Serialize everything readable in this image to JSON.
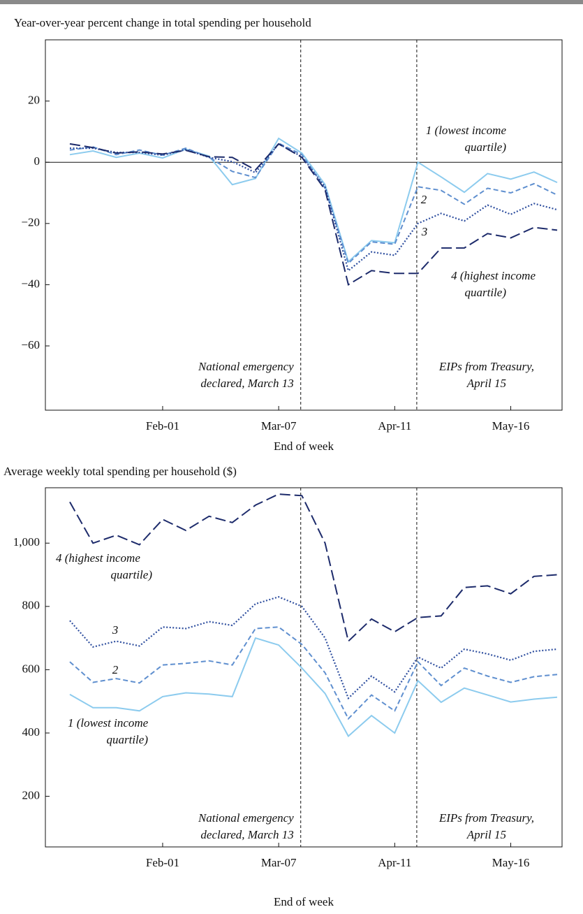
{
  "chart_data": [
    {
      "type": "line",
      "title": "Year-over-year percent change in total spending per household",
      "xlabel": "End of week",
      "categories": [
        null,
        null,
        null,
        null,
        "Feb-01",
        null,
        null,
        null,
        null,
        "Mar-07",
        null,
        null,
        null,
        null,
        "Apr-11",
        null,
        null,
        null,
        null,
        "May-16",
        null,
        null
      ],
      "ylim": [
        -81,
        40
      ],
      "yticks": [
        {
          "value": -60,
          "label": "−60"
        },
        {
          "value": -40,
          "label": "−40"
        },
        {
          "value": -20,
          "label": "−20"
        },
        0,
        20
      ],
      "zero_line": true,
      "series": [
        {
          "label": [
            "1 (lowest income",
            "quartile)"
          ],
          "color": "#8ccbee",
          "dash": "solid",
          "values": [
            2.5,
            3.7,
            1.6,
            3,
            1.4,
            4.3,
            2,
            -7.3,
            -5.3,
            7.8,
            3,
            -7.3,
            -32.5,
            -25.6,
            -26.3,
            0,
            -4.8,
            -9.8,
            -3.7,
            -5.5,
            -3.2,
            -6.6
          ]
        },
        {
          "label": [
            "2"
          ],
          "color": "#5f8fcf",
          "dash": "dashed",
          "values": [
            4,
            5,
            2.5,
            4,
            2.3,
            4.6,
            1.6,
            -3,
            -5,
            6.2,
            2.5,
            -8.5,
            -33,
            -26,
            -26.8,
            -8,
            -9.2,
            -13.7,
            -8.5,
            -10,
            -7,
            -10.7
          ]
        },
        {
          "label": [
            "3"
          ],
          "color": "#2f4f9f",
          "dash": "dotted",
          "values": [
            4.6,
            4.6,
            3.2,
            3.2,
            2.3,
            4.1,
            1.6,
            0.2,
            -3.4,
            6,
            1.8,
            -8,
            -35.4,
            -29.3,
            -30.4,
            -20,
            -16.7,
            -19.2,
            -14,
            -17,
            -13.5,
            -15.5
          ]
        },
        {
          "label": [
            "4 (highest income",
            "quartile)"
          ],
          "color": "#1d2b6b",
          "dash": "longdash",
          "values": [
            6,
            4.8,
            3,
            3.4,
            2.7,
            3.9,
            1.8,
            1.6,
            -2.5,
            6,
            1.6,
            -9,
            -40,
            -35.4,
            -36.3,
            -36.3,
            -28,
            -28,
            -23.3,
            -24.7,
            -21.3,
            -22.2
          ]
        }
      ],
      "events": [
        {
          "lines": [
            "National emergency",
            "declared, March 13"
          ]
        },
        {
          "lines": [
            "EIPs from Treasury,",
            "April 15"
          ]
        }
      ]
    },
    {
      "type": "line",
      "title": "Average weekly total spending per household ($)",
      "xlabel": "End of week",
      "categories": [
        null,
        null,
        null,
        null,
        "Feb-01",
        null,
        null,
        null,
        null,
        "Mar-07",
        null,
        null,
        null,
        null,
        "Apr-11",
        null,
        null,
        null,
        null,
        "May-16",
        null,
        null
      ],
      "ylim": [
        40,
        1175
      ],
      "yticks": [
        200,
        400,
        600,
        800,
        {
          "value": 1000,
          "label": "1,000"
        }
      ],
      "zero_line": false,
      "series": [
        {
          "label": [
            "1 (lowest income",
            "quartile)"
          ],
          "color": "#8ccbee",
          "dash": "solid",
          "values": [
            522,
            480,
            480,
            470,
            515,
            527,
            523,
            515,
            700,
            678,
            605,
            525,
            390,
            455,
            400,
            565,
            497,
            542,
            520,
            498,
            507,
            513
          ]
        },
        {
          "label": [
            "2"
          ],
          "color": "#5f8fcf",
          "dash": "dashed",
          "values": [
            625,
            560,
            572,
            558,
            615,
            620,
            628,
            615,
            730,
            735,
            680,
            590,
            445,
            520,
            470,
            625,
            550,
            605,
            580,
            560,
            578,
            585
          ]
        },
        {
          "label": [
            "3"
          ],
          "color": "#2f4f9f",
          "dash": "dotted",
          "values": [
            755,
            672,
            690,
            675,
            735,
            730,
            752,
            740,
            808,
            830,
            800,
            700,
            510,
            580,
            530,
            640,
            605,
            665,
            650,
            630,
            658,
            665
          ]
        },
        {
          "label": [
            "4 (highest income",
            "quartile)"
          ],
          "color": "#1d2b6b",
          "dash": "longdash",
          "values": [
            1130,
            1000,
            1025,
            995,
            1075,
            1040,
            1085,
            1065,
            1120,
            1155,
            1150,
            1000,
            690,
            760,
            720,
            765,
            770,
            860,
            865,
            840,
            895,
            900
          ]
        }
      ],
      "events": [
        {
          "lines": [
            "National emergency",
            "declared, March 13"
          ]
        },
        {
          "lines": [
            "EIPs from Treasury,",
            "April 15"
          ]
        }
      ]
    }
  ]
}
